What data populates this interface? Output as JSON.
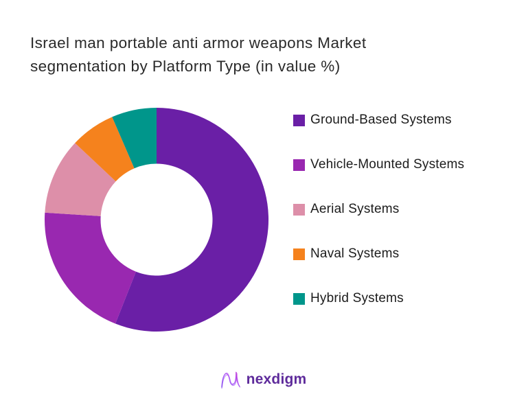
{
  "title": {
    "line1": "Israel man portable anti armor weapons Market",
    "line2": "segmentation by Platform Type (in value %)"
  },
  "chart_data": {
    "type": "pie",
    "subtype": "donut",
    "title": "Israel man portable anti armor weapons Market segmentation by Platform Type (in value %)",
    "categories": [
      "Ground-Based Systems",
      "Vehicle-Mounted Systems",
      "Aerial Systems",
      "Naval Systems",
      "Hybrid Systems"
    ],
    "values": [
      56,
      20,
      11,
      6.5,
      6.5
    ],
    "colors": [
      "#6a1fa6",
      "#9928b0",
      "#dd8fa9",
      "#f5821d",
      "#00968b"
    ],
    "unit": "value %",
    "start_angle_deg": 0,
    "direction": "clockwise",
    "inner_radius_ratio": 0.5,
    "legend_position": "right",
    "data_labels": false
  },
  "footer": {
    "brand": "nexdigm"
  }
}
